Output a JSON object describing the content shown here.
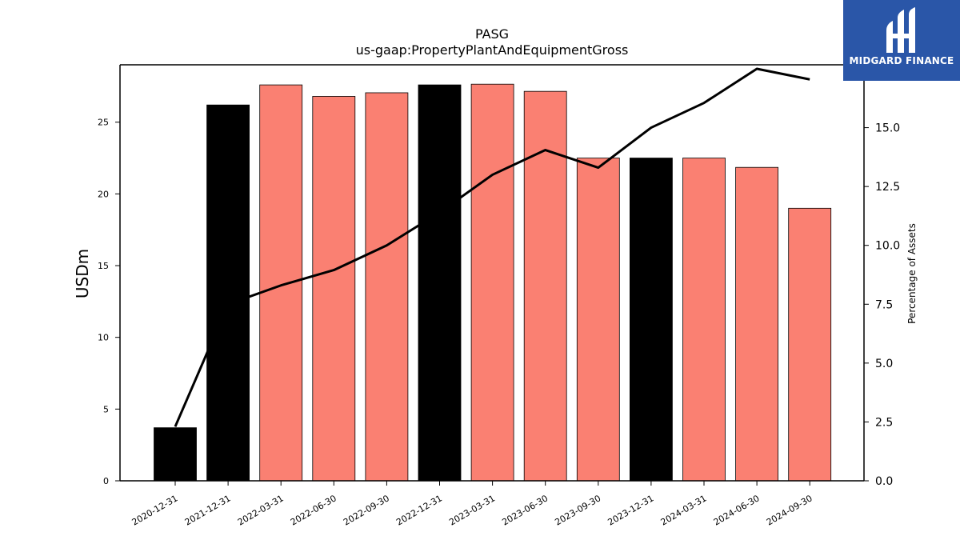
{
  "chart_data": {
    "type": "bar",
    "title": "PASG",
    "subtitle": "us-gaap:PropertyPlantAndEquipmentGross",
    "ylabel": "USDm",
    "y2label": "Percentage of Assets",
    "ylim": [
      0,
      29
    ],
    "y2lim": [
      0,
      17.67
    ],
    "yticks": [
      "0",
      "5",
      "10",
      "15",
      "20",
      "25"
    ],
    "y2ticks": [
      "0.0",
      "2.5",
      "5.0",
      "7.5",
      "10.0",
      "12.5",
      "15.0",
      "17.5"
    ],
    "categories": [
      "2020-12-31",
      "2021-12-31",
      "2022-03-31",
      "2022-06-30",
      "2022-09-30",
      "2022-12-31",
      "2023-03-31",
      "2023-06-30",
      "2023-09-30",
      "2023-12-31",
      "2024-03-31",
      "2024-06-30",
      "2024-09-30"
    ],
    "series": [
      {
        "type": "bar",
        "values": [
          3.7,
          26.2,
          27.6,
          26.8,
          27.05,
          27.6,
          27.65,
          27.15,
          22.5,
          22.5,
          22.5,
          21.85,
          19.0
        ],
        "colors": [
          "#000000",
          "#000000",
          "#fa8072",
          "#fa8072",
          "#fa8072",
          "#000000",
          "#fa8072",
          "#fa8072",
          "#fa8072",
          "#000000",
          "#fa8072",
          "#fa8072",
          "#fa8072"
        ]
      },
      {
        "type": "line",
        "axis": "right",
        "color": "#000000",
        "values": [
          2.3,
          7.5,
          8.3,
          8.95,
          10.0,
          11.4,
          13.0,
          14.05,
          13.3,
          15.0,
          16.05,
          17.5,
          17.05
        ]
      }
    ]
  },
  "logo": {
    "text": "MIDGARD FINANCE",
    "background": "#2a56a8"
  }
}
